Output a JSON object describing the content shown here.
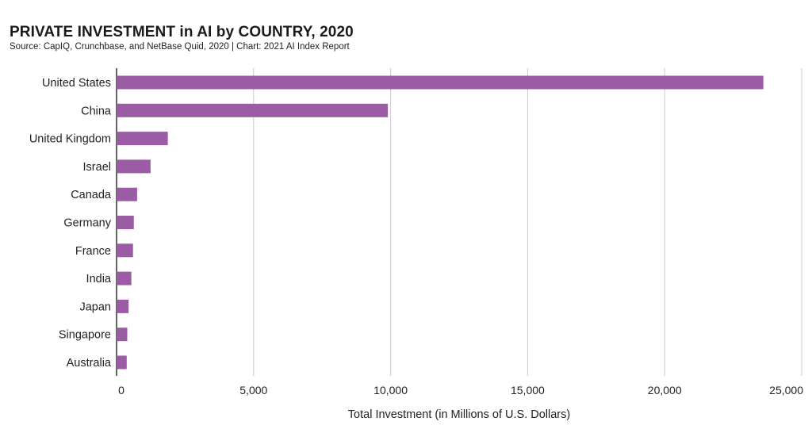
{
  "header": {
    "title": "PRIVATE INVESTMENT in AI by COUNTRY, 2020",
    "subtitle": "Source: CapIQ, Crunchbase, and NetBase Quid, 2020 | Chart: 2021 AI Index Report"
  },
  "colors": {
    "bar": "#9b5ba5",
    "grid": "#c8c8c8",
    "axis": "#333333"
  },
  "chart_data": {
    "type": "bar",
    "orientation": "horizontal",
    "title": "PRIVATE INVESTMENT in AI by COUNTRY, 2020",
    "subtitle": "Source: CapIQ, Crunchbase, and NetBase Quid, 2020 | Chart: 2021 AI Index Report",
    "xlabel": "Total Investment (in Millions of U.S. Dollars)",
    "ylabel": "",
    "categories": [
      "United States",
      "China",
      "United Kingdom",
      "Israel",
      "Canada",
      "Germany",
      "France",
      "India",
      "Japan",
      "Singapore",
      "Australia"
    ],
    "values": [
      23600,
      9900,
      1870,
      1240,
      750,
      630,
      600,
      540,
      440,
      390,
      370
    ],
    "xlim": [
      0,
      25000
    ],
    "xticks": [
      0,
      5000,
      10000,
      15000,
      20000,
      25000
    ],
    "xtick_labels": [
      "0",
      "5,000",
      "10,000",
      "15,000",
      "20,000",
      "25,000"
    ],
    "grid": true,
    "legend": "none"
  }
}
